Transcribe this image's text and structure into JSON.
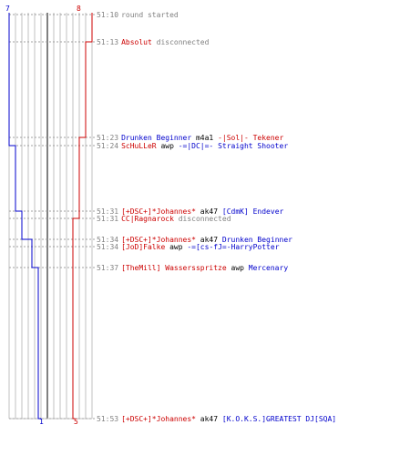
{
  "scoreboard": {
    "blue_start": "7",
    "red_start": "8",
    "blue_end": "1",
    "red_end": "5"
  },
  "colors": {
    "blue": "#0000cc",
    "red": "#cc0000",
    "grid": "#c0c0c0",
    "dash": "#a0a0a0",
    "text": "#808080"
  },
  "events": [
    {
      "time": "51:10",
      "parts": [
        {
          "text": "round started",
          "color": "grey"
        }
      ]
    },
    {
      "time": "51:13",
      "parts": [
        {
          "text": "Absolut",
          "color": "red"
        },
        {
          "text": " disconnected",
          "color": "grey"
        }
      ]
    },
    {
      "time": "51:23",
      "parts": [
        {
          "text": "Drunken Beginner",
          "color": "blue"
        },
        {
          "text": " m4a1 ",
          "color": "dark"
        },
        {
          "text": "-|Sol|- Tekener",
          "color": "red"
        }
      ]
    },
    {
      "time": "51:24",
      "parts": [
        {
          "text": "ScHuLLeR",
          "color": "red"
        },
        {
          "text": " awp ",
          "color": "dark"
        },
        {
          "text": "-=|DC|=- Straight Shooter",
          "color": "blue"
        }
      ]
    },
    {
      "time": "51:31",
      "parts": [
        {
          "text": "[+DSC+]*Johannes*",
          "color": "red"
        },
        {
          "text": " ak47 ",
          "color": "dark"
        },
        {
          "text": "[CdmK] Endever",
          "color": "blue"
        }
      ]
    },
    {
      "time": "51:31",
      "parts": [
        {
          "text": "CC|Ragnarock",
          "color": "red"
        },
        {
          "text": " disconnected",
          "color": "grey"
        }
      ]
    },
    {
      "time": "51:34",
      "parts": [
        {
          "text": "[+DSC+]*Johannes*",
          "color": "red"
        },
        {
          "text": " ak47 ",
          "color": "dark"
        },
        {
          "text": "Drunken Beginner",
          "color": "blue"
        }
      ]
    },
    {
      "time": "51:34",
      "parts": [
        {
          "text": "[JoD]Falke",
          "color": "red"
        },
        {
          "text": " awp ",
          "color": "dark"
        },
        {
          "text": "-=[cs-fJ=-HarryPotter",
          "color": "blue"
        }
      ]
    },
    {
      "time": "51:37",
      "parts": [
        {
          "text": "[TheMill] Wassersspritze",
          "color": "red"
        },
        {
          "text": " awp ",
          "color": "dark"
        },
        {
          "text": "Mercenary",
          "color": "blue"
        }
      ]
    },
    {
      "time": "51:53",
      "parts": [
        {
          "text": "[+DSC+]*Johannes*",
          "color": "red"
        },
        {
          "text": " ak47 ",
          "color": "dark"
        },
        {
          "text": "[K.O.K.S.]GREATEST DJ[SQA]",
          "color": "blue"
        }
      ]
    }
  ]
}
